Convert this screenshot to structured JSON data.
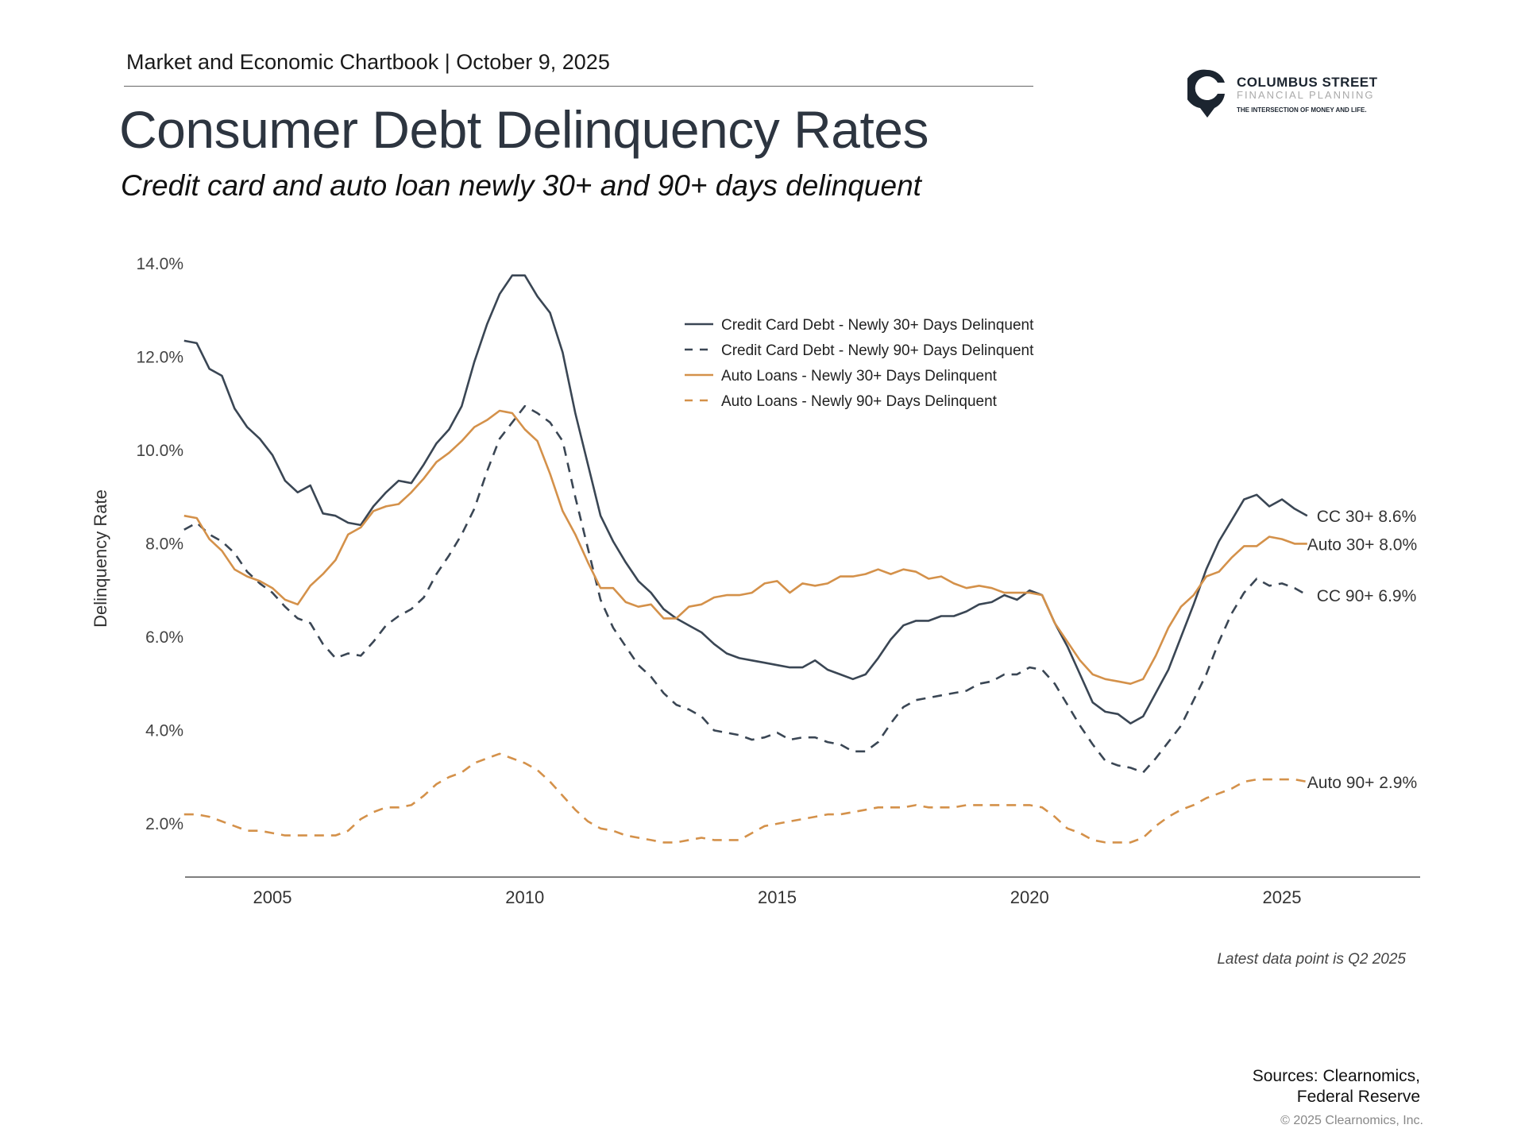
{
  "header": {
    "kicker": "Market and Economic Chartbook | October 9, 2025",
    "title": "Consumer Debt Delinquency Rates",
    "subtitle": "Credit card and auto loan newly 30+ and 90+ days delinquent"
  },
  "logo": {
    "name": "COLUMBUS STREET",
    "line2": "FINANCIAL PLANNING",
    "tagline": "THE INTERSECTION OF MONEY AND LIFE."
  },
  "footer": {
    "note": "Latest data point is Q2 2025",
    "sources_line1": "Sources: Clearnomics,",
    "sources_line2": "Federal Reserve",
    "copyright": "© 2025 Clearnomics, Inc."
  },
  "colors": {
    "credit_card": "#3a4654",
    "auto": "#d4914a",
    "axis": "#444444"
  },
  "chart_data": {
    "type": "line",
    "title": "Consumer Debt Delinquency Rates",
    "ylabel": "Delinquency Rate",
    "xlabel": "",
    "x_start": 2003.25,
    "x_step_years": 0.25,
    "xlim": [
      2003.25,
      2027.75
    ],
    "ylim": [
      0.85,
      14.3
    ],
    "xticks": [
      2005,
      2010,
      2015,
      2020,
      2025
    ],
    "xtick_labels": [
      "2005",
      "2010",
      "2015",
      "2020",
      "2025"
    ],
    "yticks": [
      2,
      4,
      6,
      8,
      10,
      12,
      14
    ],
    "ytick_labels": [
      "2.0%",
      "4.0%",
      "6.0%",
      "8.0%",
      "10.0%",
      "12.0%",
      "14.0%"
    ],
    "grid": false,
    "legend_placement": "top-center",
    "series": [
      {
        "name": "Credit Card Debt - Newly 30+ Days Delinquent",
        "color": "#3a4654",
        "dash": false,
        "end_label": "CC 30+ 8.6%",
        "values": [
          12.35,
          12.3,
          11.75,
          11.6,
          10.9,
          10.5,
          10.25,
          9.9,
          9.35,
          9.1,
          9.25,
          8.65,
          8.6,
          8.45,
          8.4,
          8.8,
          9.1,
          9.35,
          9.3,
          9.7,
          10.15,
          10.45,
          10.95,
          11.9,
          12.7,
          13.35,
          13.75,
          13.75,
          13.3,
          12.95,
          12.1,
          10.8,
          9.7,
          8.6,
          8.05,
          7.6,
          7.2,
          6.95,
          6.6,
          6.4,
          6.25,
          6.1,
          5.85,
          5.65,
          5.55,
          5.5,
          5.45,
          5.4,
          5.35,
          5.35,
          5.5,
          5.3,
          5.2,
          5.1,
          5.2,
          5.55,
          5.95,
          6.25,
          6.35,
          6.35,
          6.45,
          6.45,
          6.55,
          6.7,
          6.75,
          6.9,
          6.8,
          7.0,
          6.9,
          6.3,
          5.8,
          5.2,
          4.6,
          4.4,
          4.35,
          4.15,
          4.3,
          4.8,
          5.3,
          6.0,
          6.7,
          7.45,
          8.05,
          8.5,
          8.95,
          9.05,
          8.8,
          8.95,
          8.75,
          8.6
        ]
      },
      {
        "name": "Credit Card Debt - Newly 90+ Days Delinquent",
        "color": "#3a4654",
        "dash": true,
        "end_label": "CC 90+ 6.9%",
        "values": [
          8.3,
          8.45,
          8.2,
          8.05,
          7.8,
          7.4,
          7.15,
          6.95,
          6.65,
          6.4,
          6.3,
          5.85,
          5.55,
          5.65,
          5.6,
          5.9,
          6.25,
          6.45,
          6.6,
          6.85,
          7.35,
          7.75,
          8.2,
          8.75,
          9.55,
          10.25,
          10.6,
          10.95,
          10.8,
          10.6,
          10.2,
          9.0,
          7.9,
          6.8,
          6.2,
          5.8,
          5.4,
          5.15,
          4.8,
          4.55,
          4.45,
          4.3,
          4.0,
          3.95,
          3.9,
          3.8,
          3.85,
          3.95,
          3.8,
          3.85,
          3.85,
          3.75,
          3.7,
          3.55,
          3.55,
          3.75,
          4.15,
          4.5,
          4.65,
          4.7,
          4.75,
          4.8,
          4.85,
          5.0,
          5.05,
          5.2,
          5.2,
          5.35,
          5.3,
          5.0,
          4.55,
          4.1,
          3.7,
          3.35,
          3.25,
          3.2,
          3.1,
          3.4,
          3.75,
          4.1,
          4.65,
          5.2,
          5.9,
          6.5,
          6.95,
          7.25,
          7.1,
          7.15,
          7.05,
          6.9
        ]
      },
      {
        "name": "Auto Loans - Newly 30+ Days Delinquent",
        "color": "#d4914a",
        "dash": false,
        "end_label": "Auto 30+ 8.0%",
        "values": [
          8.6,
          8.55,
          8.1,
          7.85,
          7.45,
          7.3,
          7.2,
          7.05,
          6.8,
          6.7,
          7.1,
          7.35,
          7.65,
          8.2,
          8.35,
          8.7,
          8.8,
          8.85,
          9.1,
          9.4,
          9.75,
          9.95,
          10.2,
          10.5,
          10.65,
          10.85,
          10.8,
          10.45,
          10.2,
          9.5,
          8.7,
          8.2,
          7.6,
          7.05,
          7.05,
          6.75,
          6.65,
          6.7,
          6.4,
          6.4,
          6.65,
          6.7,
          6.85,
          6.9,
          6.9,
          6.95,
          7.15,
          7.2,
          6.95,
          7.15,
          7.1,
          7.15,
          7.3,
          7.3,
          7.35,
          7.45,
          7.35,
          7.45,
          7.4,
          7.25,
          7.3,
          7.15,
          7.05,
          7.1,
          7.05,
          6.95,
          6.95,
          6.95,
          6.9,
          6.3,
          5.9,
          5.5,
          5.2,
          5.1,
          5.05,
          5.0,
          5.1,
          5.6,
          6.2,
          6.65,
          6.9,
          7.3,
          7.4,
          7.7,
          7.95,
          7.95,
          8.15,
          8.1,
          8.0,
          8.0
        ]
      },
      {
        "name": "Auto Loans - Newly 90+ Days Delinquent",
        "color": "#d4914a",
        "dash": true,
        "end_label": "Auto 90+ 2.9%",
        "values": [
          2.2,
          2.2,
          2.15,
          2.05,
          1.95,
          1.85,
          1.85,
          1.8,
          1.75,
          1.75,
          1.75,
          1.75,
          1.75,
          1.85,
          2.1,
          2.25,
          2.35,
          2.35,
          2.4,
          2.6,
          2.85,
          3.0,
          3.1,
          3.3,
          3.4,
          3.5,
          3.4,
          3.3,
          3.15,
          2.9,
          2.6,
          2.3,
          2.05,
          1.9,
          1.85,
          1.75,
          1.7,
          1.65,
          1.6,
          1.6,
          1.65,
          1.7,
          1.65,
          1.65,
          1.65,
          1.8,
          1.95,
          2.0,
          2.05,
          2.1,
          2.15,
          2.2,
          2.2,
          2.25,
          2.3,
          2.35,
          2.35,
          2.35,
          2.4,
          2.35,
          2.35,
          2.35,
          2.4,
          2.4,
          2.4,
          2.4,
          2.4,
          2.4,
          2.35,
          2.15,
          1.9,
          1.8,
          1.65,
          1.6,
          1.6,
          1.6,
          1.7,
          1.95,
          2.15,
          2.3,
          2.4,
          2.55,
          2.65,
          2.75,
          2.9,
          2.95,
          2.95,
          2.95,
          2.95,
          2.9
        ]
      }
    ]
  }
}
